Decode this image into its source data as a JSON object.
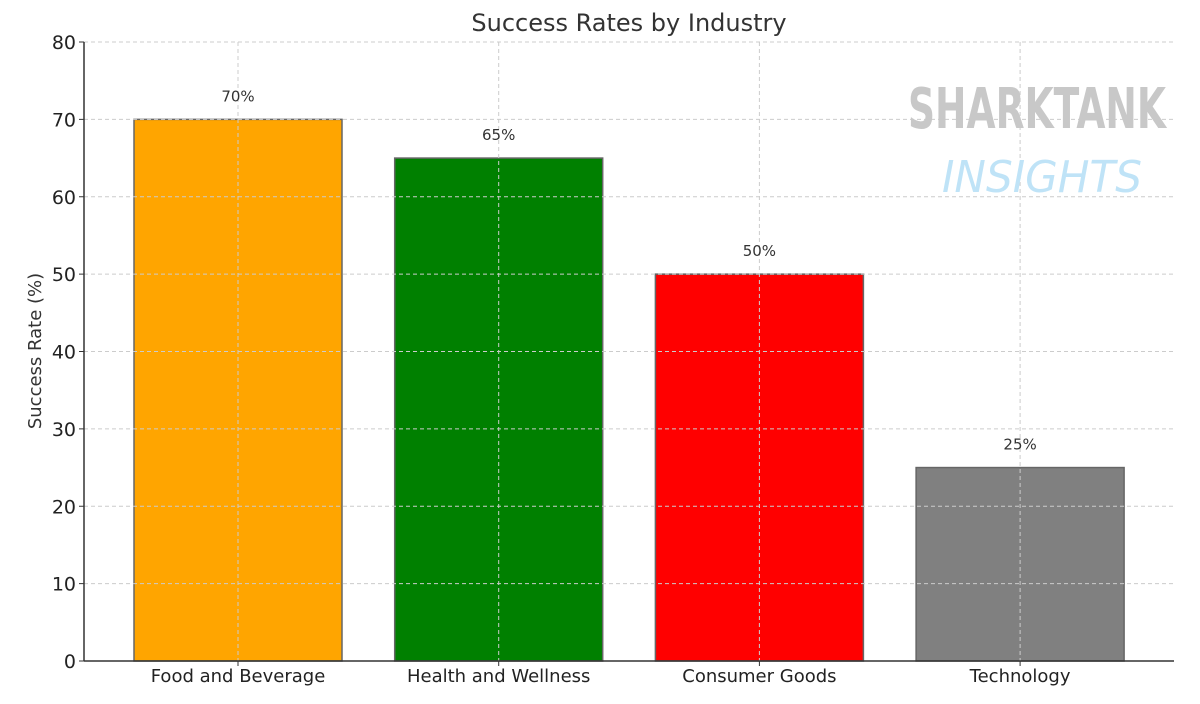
{
  "chart_data": {
    "type": "bar",
    "title": "Success Rates by Industry",
    "xlabel": "",
    "ylabel": "Success Rate (%)",
    "ylim": [
      0,
      80
    ],
    "yticks": [
      0,
      10,
      20,
      30,
      40,
      50,
      60,
      70,
      80
    ],
    "grid": true,
    "categories": [
      "Food and Beverage",
      "Health and Wellness",
      "Consumer Goods",
      "Technology"
    ],
    "values": [
      70,
      65,
      50,
      25
    ],
    "data_labels": [
      "70%",
      "65%",
      "50%",
      "25%"
    ],
    "colors": [
      "#ffa500",
      "#008000",
      "#ff0000",
      "#808080"
    ],
    "watermark": {
      "line1": "SHARKTANK",
      "line2": "INSIGHTS"
    }
  }
}
